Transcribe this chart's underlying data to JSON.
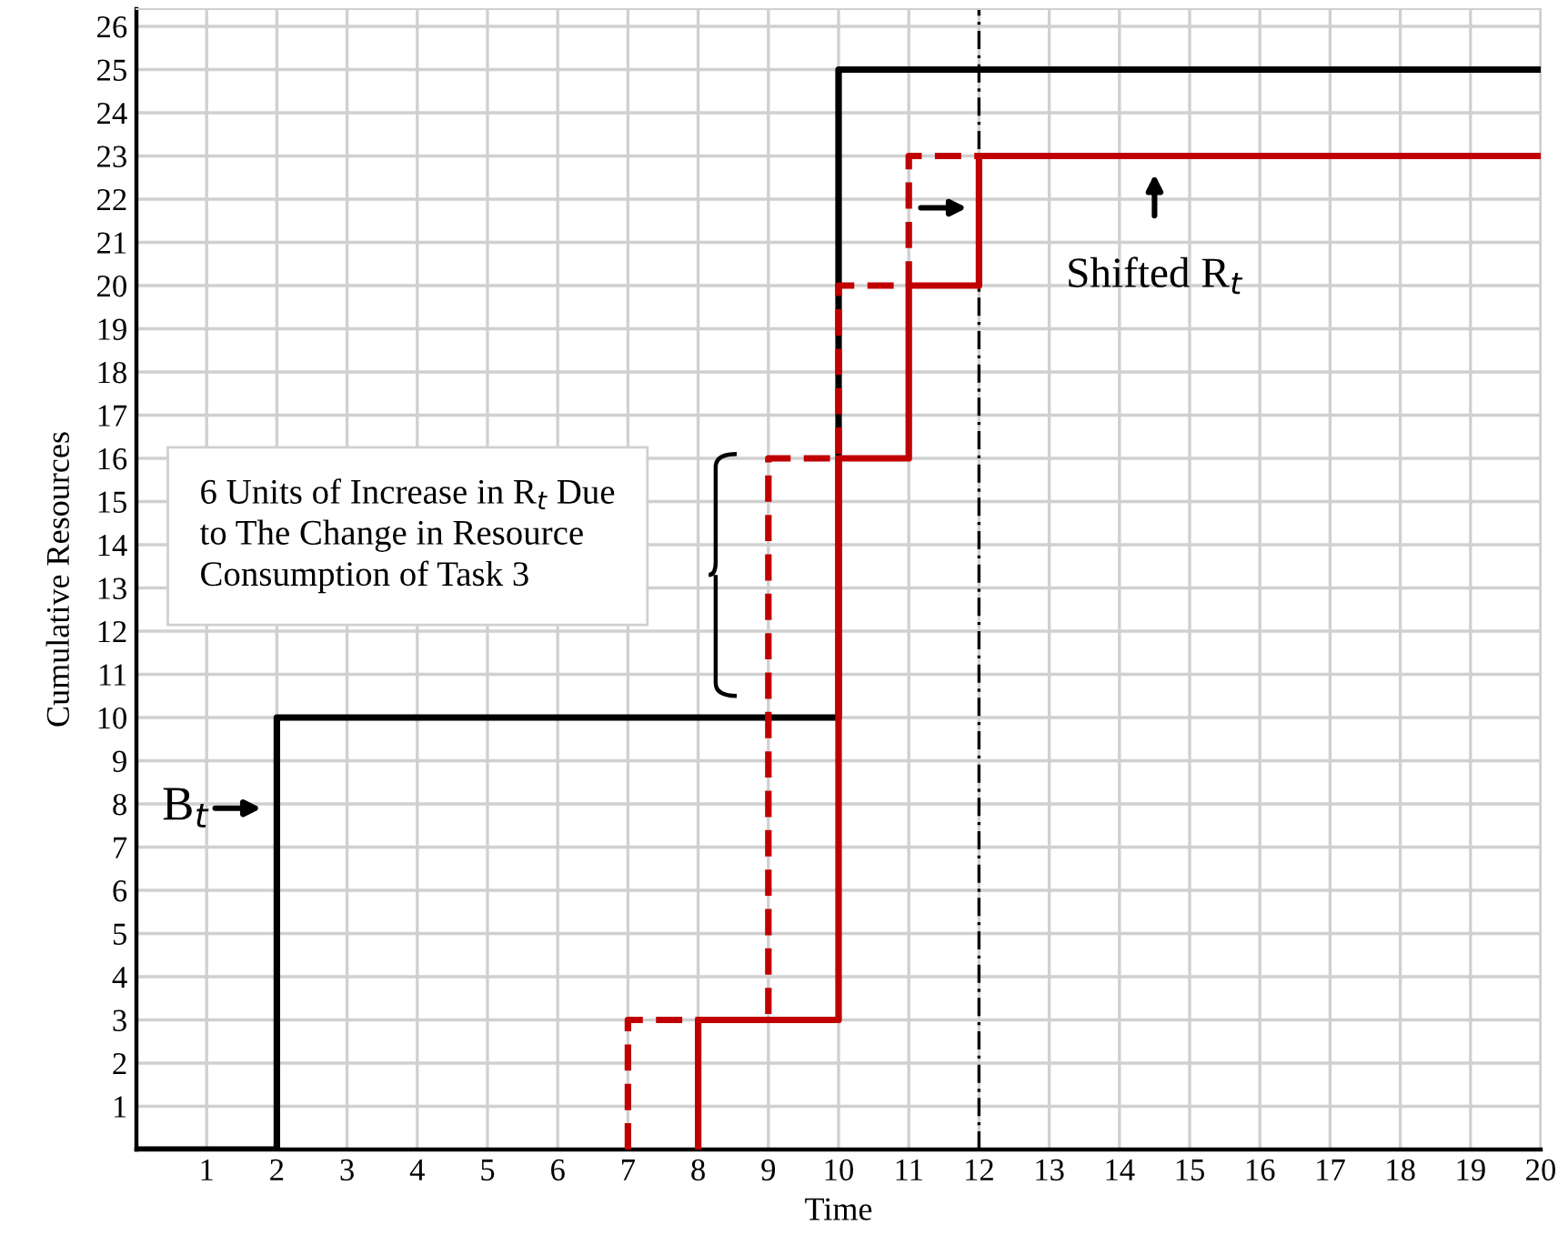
{
  "chart_data": {
    "type": "step",
    "xlabel": "Time",
    "ylabel": "Cumulative Resources",
    "xlim": [
      0,
      20
    ],
    "ylim": [
      0,
      26.4
    ],
    "xticks": [
      1,
      2,
      3,
      4,
      5,
      6,
      7,
      8,
      9,
      10,
      11,
      12,
      13,
      14,
      15,
      16,
      17,
      18,
      19,
      20
    ],
    "yticks": [
      1,
      2,
      3,
      4,
      5,
      6,
      7,
      8,
      9,
      10,
      11,
      12,
      13,
      14,
      15,
      16,
      17,
      18,
      19,
      20,
      21,
      22,
      23,
      24,
      25,
      26
    ],
    "grid": true,
    "legend": false,
    "series": [
      {
        "color": "#000000",
        "line_style": "solid",
        "x": [
          0,
          2,
          10,
          20
        ],
        "values": [
          0,
          10,
          25,
          25
        ]
      },
      {
        "color": "#c00000",
        "line_style": "dashed",
        "x": [
          7,
          7,
          9,
          10,
          11,
          12
        ],
        "values": [
          0,
          3,
          16,
          20,
          23,
          23
        ]
      },
      {
        "color": "#c00000",
        "line_style": "solid",
        "x": [
          8,
          8,
          10,
          11,
          12,
          20
        ],
        "values": [
          0,
          3,
          16,
          20,
          23,
          23
        ]
      }
    ],
    "ref_lines": [
      {
        "axis": "x",
        "value": 12,
        "color": "#000000",
        "line_style": "dashdot"
      }
    ],
    "annotations": [
      {
        "text": "B$_{t}$",
        "x": 2,
        "y": 7.9
      },
      {
        "text": "Shifted R$_{t}$",
        "x": 14.5,
        "y": 23
      },
      "6 Units of Increase in R$_{t}$ Due to The Change in Resource Consumption of Task 3"
    ]
  }
}
